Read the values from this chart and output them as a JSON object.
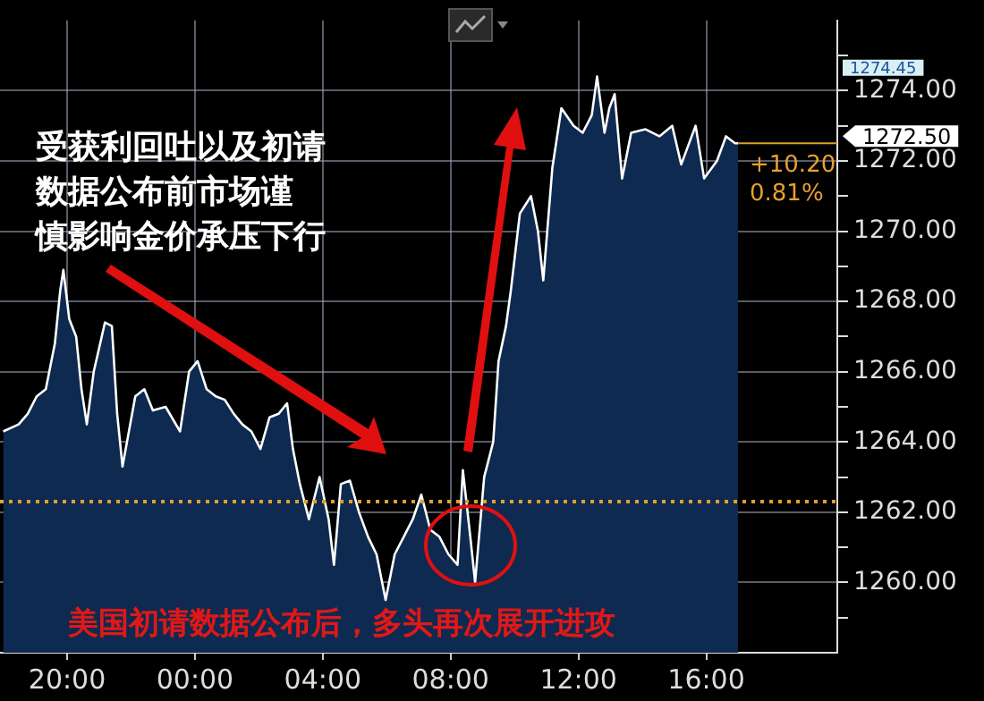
{
  "chart_data": {
    "type": "area",
    "x": [
      "--01-01T18:00",
      "--01-01T18:29",
      "--01-01T18:46",
      "--01-01T19:03",
      "--01-01T19:20",
      "--01-01T19:37",
      "--01-01T19:47",
      "--01-01T19:53",
      "--01-01T20:04",
      "--01-01T20:17",
      "--01-01T20:27",
      "--01-01T20:37",
      "--01-01T20:50",
      "--01-01T21:11",
      "--01-01T21:24",
      "--01-01T21:34",
      "--01-01T21:44",
      "--01-01T22:08",
      "--01-01T22:25",
      "--01-01T22:41",
      "--01-01T23:05",
      "--01-01T23:32",
      "--01-01T23:49",
      "--01-02T00:05",
      "--01-02T00:22",
      "--01-02T00:39",
      "--01-02T00:56",
      "--01-02T01:13",
      "--01-02T01:29",
      "--01-02T01:46",
      "--01-02T02:03",
      "--01-02T02:20",
      "--01-02T02:37",
      "--01-02T02:53",
      "--01-02T03:04",
      "--01-02T03:17",
      "--01-02T03:34",
      "--01-02T03:54",
      "--01-02T04:11",
      "--01-02T04:21",
      "--01-02T04:34",
      "--01-02T04:51",
      "--01-02T05:08",
      "--01-02T05:25",
      "--01-02T05:41",
      "--01-02T05:58",
      "--01-02T06:15",
      "--01-02T06:32",
      "--01-02T06:49",
      "--01-02T07:05",
      "--01-02T07:22",
      "--01-02T07:39",
      "--01-02T07:56",
      "--01-02T08:13",
      "--01-02T08:23",
      "--01-02T08:37",
      "--01-02T08:46",
      "--01-02T09:03",
      "--01-02T09:20",
      "--01-02T09:30",
      "--01-02T09:44",
      "--01-02T09:53",
      "--01-02T10:10",
      "--01-02T10:31",
      "--01-02T10:44",
      "--01-02T10:54",
      "--01-02T11:11",
      "--01-02T11:28",
      "--01-02T11:51",
      "--01-02T12:08",
      "--01-02T12:25",
      "--01-02T12:35",
      "--01-02T12:49",
      "--01-02T12:58",
      "--01-02T13:08",
      "--01-02T13:22",
      "--01-02T13:39",
      "--01-02T14:06",
      "--01-02T14:32",
      "--01-02T14:56",
      "--01-02T15:13",
      "--01-02T15:40",
      "--01-02T15:56",
      "--01-02T16:20",
      "--01-02T16:37",
      "--01-02T16:54",
      "--01-02T17:00"
    ],
    "series": [
      {
        "color": "#ffffff",
        "values": [
          1264.3,
          1264.5,
          1264.8,
          1265.3,
          1265.5,
          1266.8,
          1268.3,
          1268.9,
          1267.5,
          1267.0,
          1265.5,
          1264.5,
          1266.0,
          1267.4,
          1267.3,
          1264.8,
          1263.3,
          1265.3,
          1265.5,
          1264.9,
          1265.0,
          1264.3,
          1266.0,
          1266.3,
          1265.5,
          1265.3,
          1265.2,
          1264.8,
          1264.5,
          1264.3,
          1263.8,
          1264.7,
          1264.8,
          1265.1,
          1263.8,
          1262.8,
          1261.8,
          1263.0,
          1261.8,
          1260.5,
          1262.8,
          1262.9,
          1262.0,
          1261.3,
          1260.8,
          1259.5,
          1260.8,
          1261.3,
          1261.8,
          1262.5,
          1261.5,
          1261.3,
          1260.8,
          1260.5,
          1263.2,
          1261.3,
          1260.0,
          1263.0,
          1264.0,
          1266.3,
          1267.3,
          1268.3,
          1270.5,
          1271.0,
          1270.0,
          1268.6,
          1271.8,
          1273.5,
          1273.0,
          1272.8,
          1273.3,
          1274.4,
          1272.8,
          1273.5,
          1273.9,
          1271.5,
          1272.8,
          1272.9,
          1272.7,
          1273.0,
          1271.9,
          1273.0,
          1271.5,
          1272.0,
          1272.7,
          1272.5,
          1272.5
        ]
      }
    ],
    "xlim": [
      "--01-01T17:54",
      "--01-02T20:06"
    ],
    "xticks": [
      {
        "value": "--01-01T20:00",
        "label": "20:00"
      },
      {
        "value": "--01-02T00:00",
        "label": "00:00"
      },
      {
        "value": "--01-02T04:00",
        "label": "04:00"
      },
      {
        "value": "--01-02T08:00",
        "label": "08:00"
      },
      {
        "value": "--01-02T12:00",
        "label": "12:00"
      },
      {
        "value": "--01-02T16:00",
        "label": "16:00"
      }
    ],
    "ylim": [
      1258,
      1276
    ],
    "yticks": [
      {
        "value": 1259,
        "label": null
      },
      {
        "value": 1260,
        "label": "1260.00"
      },
      {
        "value": 1261,
        "label": null
      },
      {
        "value": 1262,
        "label": "1262.00"
      },
      {
        "value": 1263,
        "label": null
      },
      {
        "value": 1264,
        "label": "1264.00"
      },
      {
        "value": 1265,
        "label": null
      },
      {
        "value": 1266,
        "label": "1266.00"
      },
      {
        "value": 1267,
        "label": null
      },
      {
        "value": 1268,
        "label": "1268.00"
      },
      {
        "value": 1269,
        "label": null
      },
      {
        "value": 1270,
        "label": "1270.00"
      },
      {
        "value": 1271,
        "label": null
      },
      {
        "value": 1272,
        "label": "1272.00"
      },
      {
        "value": 1273,
        "label": null
      },
      {
        "value": 1274,
        "label": "1274.00"
      },
      {
        "value": 1275,
        "label": null
      }
    ],
    "grid": true,
    "legend": false,
    "ref_lines": [
      {
        "axis": "y",
        "value": 1262.3,
        "color": "#e0a030",
        "line_style": "dotted"
      }
    ],
    "annotations": [
      "受获利回吐以及初请",
      "数据公布前市场谨",
      "慎影响金价承压下行",
      "美国初请数据公布后，多头再次展开进攻",
      "+10.20",
      "0.81%",
      "1274.45",
      "1272.50"
    ]
  }
}
